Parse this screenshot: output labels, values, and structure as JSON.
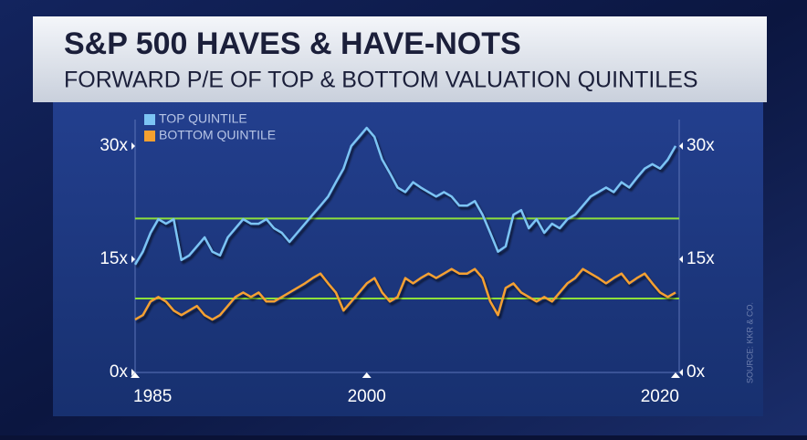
{
  "chart_data": {
    "type": "line",
    "title": "S&P 500 HAVES & HAVE-NOTS",
    "subtitle": "FORWARD P/E OF TOP & BOTTOM VALUATION QUINTILES",
    "source": "SOURCE: KKR & CO.",
    "x": [
      1985,
      1985.5,
      1986,
      1986.5,
      1987,
      1987.5,
      1988,
      1988.5,
      1989,
      1989.5,
      1990,
      1990.5,
      1991,
      1991.5,
      1992,
      1992.5,
      1993,
      1993.5,
      1994,
      1994.5,
      1995,
      1995.5,
      1996,
      1996.5,
      1997,
      1997.5,
      1998,
      1998.5,
      1999,
      1999.5,
      2000,
      2000.5,
      2001,
      2001.5,
      2002,
      2002.5,
      2003,
      2003.5,
      2004,
      2004.5,
      2005,
      2005.5,
      2006,
      2006.5,
      2007,
      2007.5,
      2008,
      2008.5,
      2009,
      2009.5,
      2010,
      2010.5,
      2011,
      2011.5,
      2012,
      2012.5,
      2013,
      2013.5,
      2014,
      2014.5,
      2015,
      2015.5,
      2016,
      2016.5,
      2017,
      2017.5,
      2018,
      2018.5,
      2019,
      2019.5,
      2020
    ],
    "series": [
      {
        "name": "TOP QUINTILE",
        "color": "#7cc4f4",
        "values": [
          14.3,
          16,
          18.5,
          20.3,
          19.7,
          20.3,
          14.9,
          15.5,
          16.7,
          17.9,
          16,
          15.5,
          17.9,
          19.1,
          20.3,
          19.7,
          19.7,
          20.3,
          19.1,
          18.5,
          17.3,
          18.5,
          19.7,
          20.9,
          22.1,
          23.3,
          25.2,
          27,
          30,
          31.2,
          32.4,
          31.2,
          28.2,
          26.4,
          24.5,
          23.9,
          25.2,
          24.5,
          23.9,
          23.3,
          23.9,
          23.3,
          22.1,
          22.1,
          22.7,
          20.9,
          18.5,
          16,
          16.7,
          20.9,
          21.5,
          19.1,
          20.3,
          18.5,
          19.7,
          19.1,
          20.3,
          20.9,
          22.1,
          23.3,
          23.9,
          24.5,
          23.9,
          25.2,
          24.5,
          25.8,
          27,
          27.6,
          27,
          28.2,
          30
        ]
      },
      {
        "name": "BOTTOM QUINTILE",
        "color": "#f5a030",
        "values": [
          7,
          7.6,
          9.4,
          10,
          9.4,
          8.2,
          7.6,
          8.2,
          8.8,
          7.6,
          7,
          7.6,
          8.8,
          10,
          10.6,
          10,
          10.6,
          9.4,
          9.4,
          10,
          10.6,
          11.2,
          11.8,
          12.5,
          13.1,
          11.8,
          10.6,
          8.2,
          9.4,
          10.6,
          11.8,
          12.5,
          10.6,
          9.4,
          10,
          12.5,
          11.8,
          12.5,
          13.1,
          12.5,
          13.1,
          13.7,
          13.1,
          13.1,
          13.7,
          12.5,
          9.4,
          7.6,
          11.2,
          11.8,
          10.6,
          10,
          9.4,
          10,
          9.4,
          10.6,
          11.8,
          12.5,
          13.7,
          13.1,
          12.5,
          11.8,
          12.5,
          13.1,
          11.8,
          12.5,
          13.1,
          11.8,
          10.6,
          10,
          10.6
        ]
      }
    ],
    "hlines": [
      20.4,
      9.8
    ],
    "hline_color": "#8ee03a",
    "xlim": [
      1985,
      2020
    ],
    "xticks": [
      1985,
      2000,
      2020
    ],
    "ylim": [
      0,
      33.5
    ],
    "yticks": [
      {
        "value": 0,
        "label": "0x"
      },
      {
        "value": 15,
        "label": "15x"
      },
      {
        "value": 30,
        "label": "30x"
      }
    ]
  }
}
